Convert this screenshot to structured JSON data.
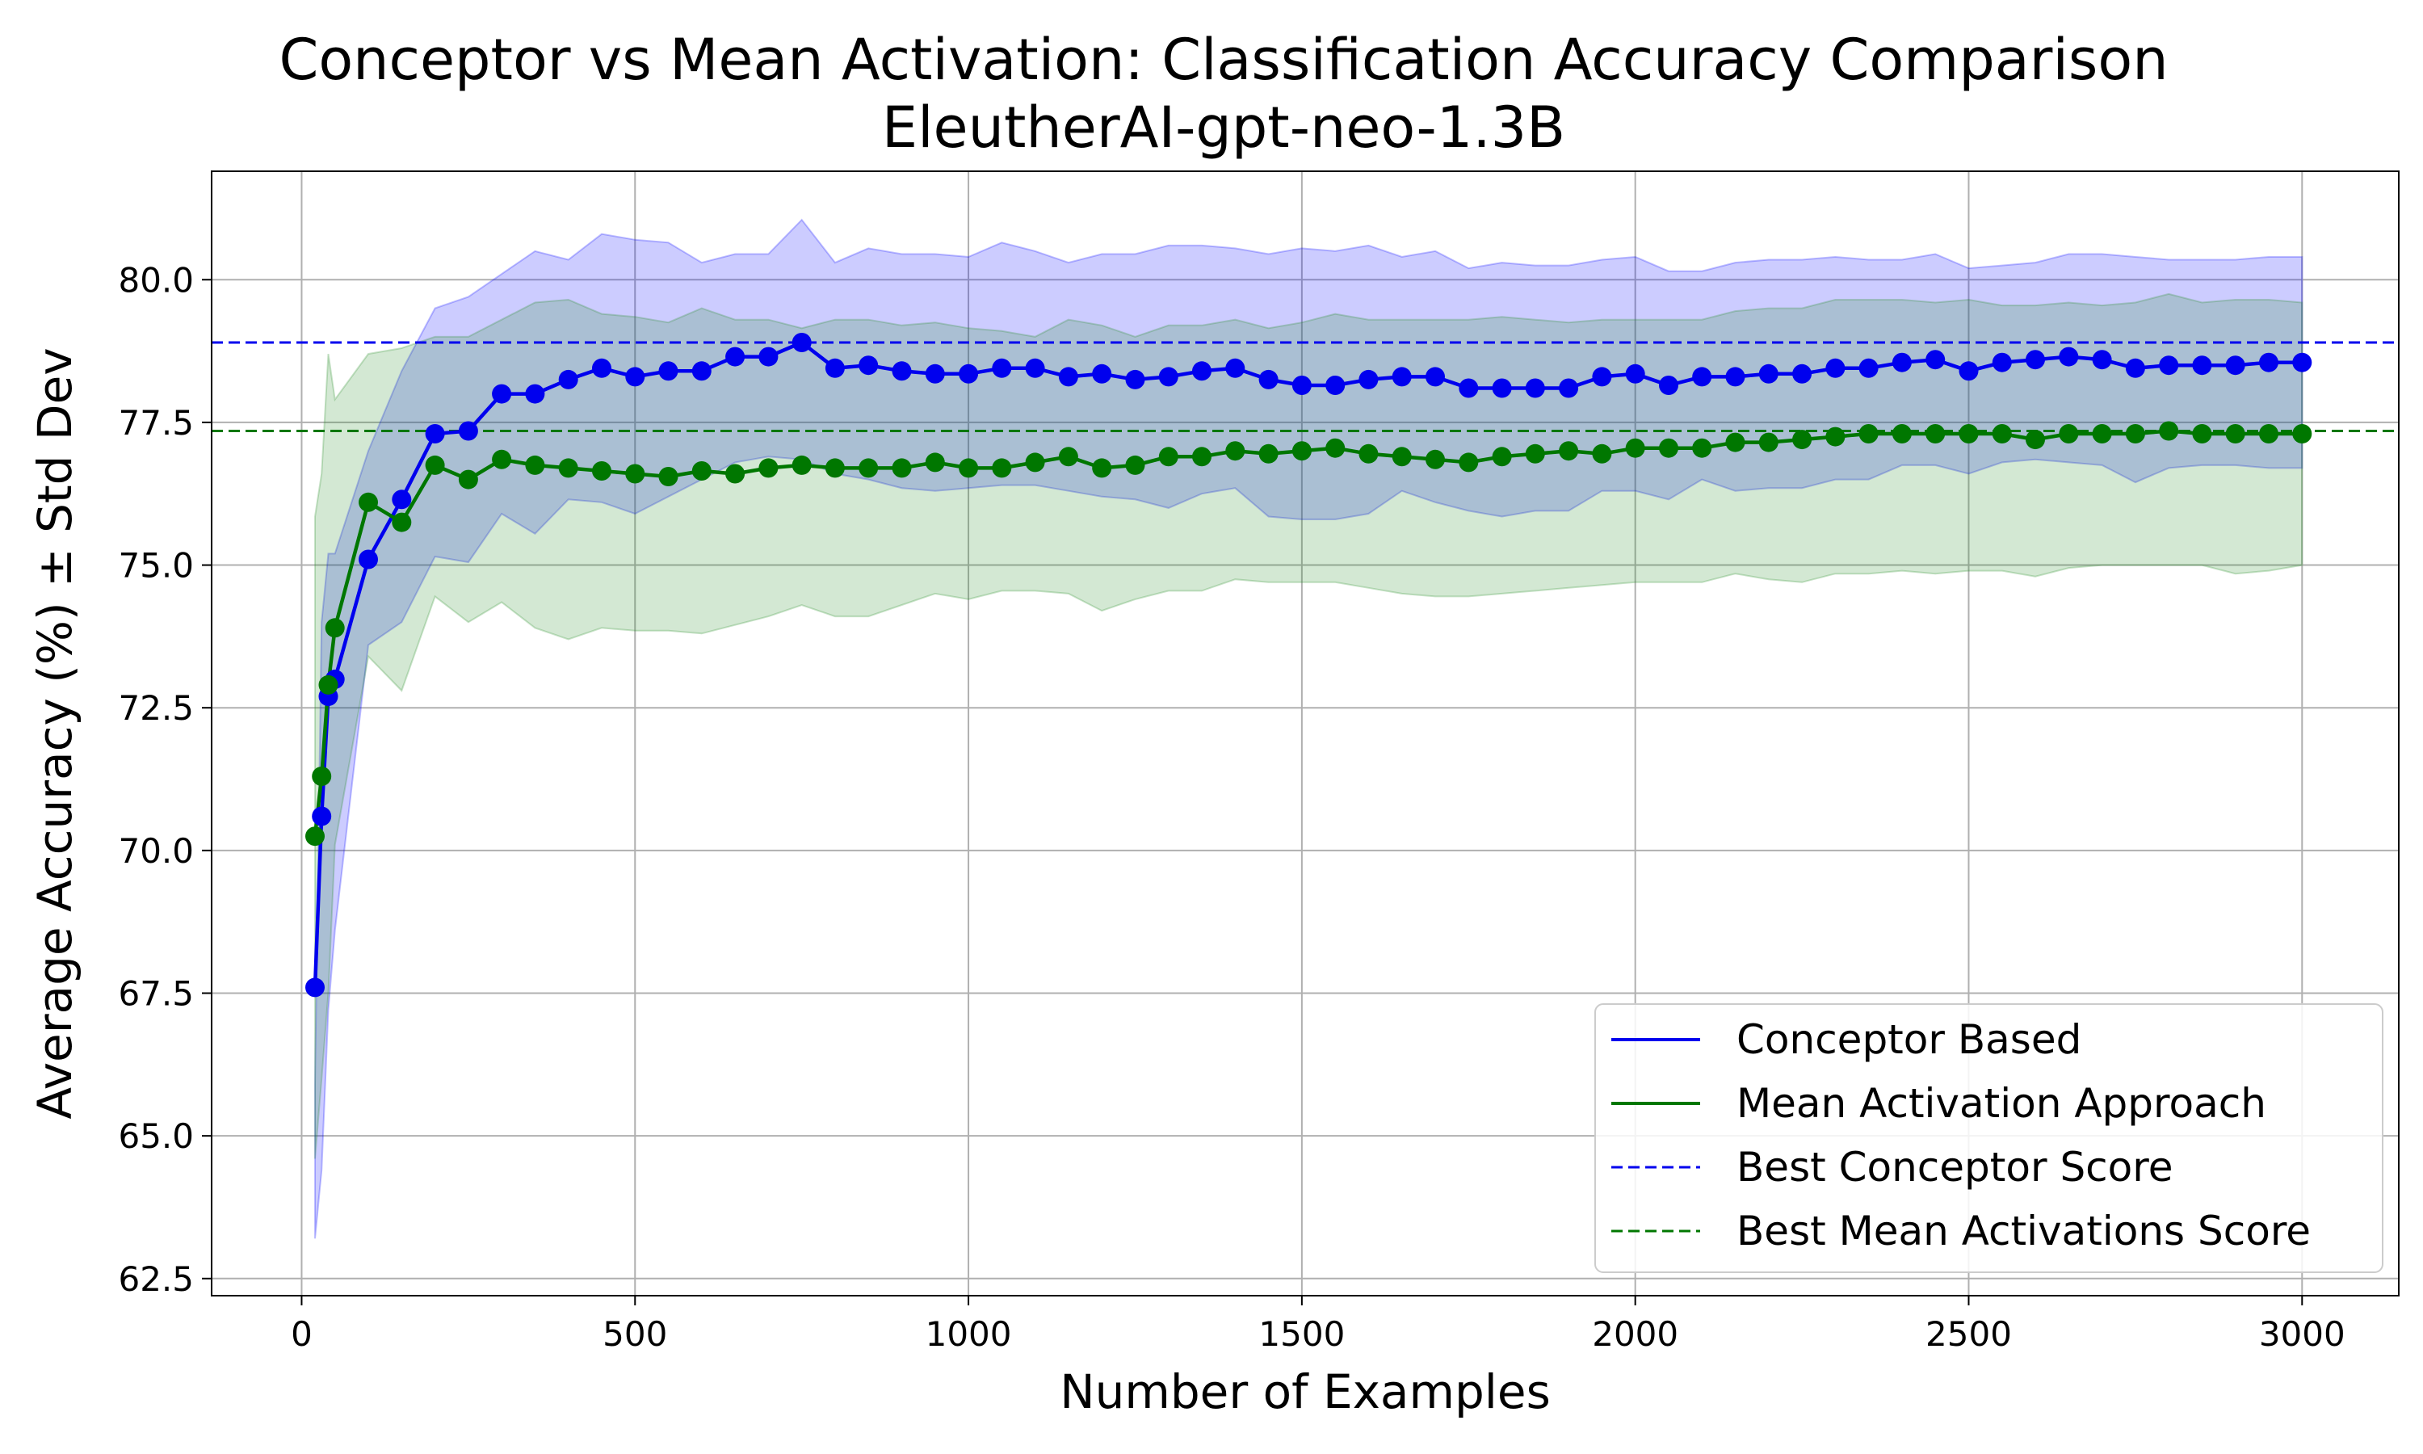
{
  "chart_data": {
    "type": "line",
    "title": "Conceptor vs Mean Activation: Classification Accuracy Comparison",
    "subtitle": "EleutherAI-gpt-neo-1.3B",
    "xlabel": "Number of Examples",
    "ylabel": "Average Accuracy (%) ± Std Dev",
    "xlim": [
      -135,
      3145
    ],
    "ylim": [
      62.2,
      81.9
    ],
    "xticks": [
      0,
      500,
      1000,
      1500,
      2000,
      2500,
      3000
    ],
    "xtick_labels": [
      "0",
      "500",
      "1000",
      "1500",
      "2000",
      "2500",
      "3000"
    ],
    "yticks": [
      62.5,
      65.0,
      67.5,
      70.0,
      72.5,
      75.0,
      77.5,
      80.0
    ],
    "ytick_labels": [
      "62.5",
      "65.0",
      "67.5",
      "70.0",
      "72.5",
      "75.0",
      "77.5",
      "80.0"
    ],
    "grid": true,
    "legend_position": "lower-right",
    "x": [
      20,
      30,
      40,
      50,
      100,
      150,
      200,
      250,
      300,
      350,
      400,
      450,
      500,
      550,
      600,
      650,
      700,
      750,
      800,
      850,
      900,
      950,
      1000,
      1050,
      1100,
      1150,
      1200,
      1250,
      1300,
      1350,
      1400,
      1450,
      1500,
      1550,
      1600,
      1650,
      1700,
      1750,
      1800,
      1850,
      1900,
      1950,
      2000,
      2050,
      2100,
      2150,
      2200,
      2250,
      2300,
      2350,
      2400,
      2450,
      2500,
      2550,
      2600,
      2650,
      2700,
      2750,
      2800,
      2850,
      2900,
      2950,
      3000
    ],
    "series": [
      {
        "name": "Conceptor Based",
        "color": "#0000ee",
        "band_color": "#0000ff",
        "values": [
          67.6,
          70.6,
          72.7,
          73.0,
          75.1,
          76.15,
          77.3,
          77.35,
          78.0,
          78.0,
          78.25,
          78.45,
          78.3,
          78.4,
          78.4,
          78.65,
          78.65,
          78.9,
          78.45,
          78.5,
          78.4,
          78.35,
          78.35,
          78.45,
          78.45,
          78.3,
          78.35,
          78.25,
          78.3,
          78.4,
          78.45,
          78.25,
          78.15,
          78.15,
          78.25,
          78.3,
          78.3,
          78.1,
          78.1,
          78.1,
          78.1,
          78.3,
          78.35,
          78.15,
          78.3,
          78.3,
          78.35,
          78.35,
          78.45,
          78.45,
          78.55,
          78.6,
          78.4,
          78.55,
          78.6,
          78.65,
          78.6,
          78.45,
          78.5,
          78.5,
          78.5,
          78.55,
          78.55
        ],
        "upper": [
          65.9,
          74.0,
          75.2,
          75.2,
          77.0,
          78.4,
          79.5,
          79.7,
          80.1,
          80.5,
          80.35,
          80.8,
          80.7,
          80.65,
          80.3,
          80.45,
          80.45,
          81.05,
          80.3,
          80.55,
          80.45,
          80.45,
          80.4,
          80.65,
          80.5,
          80.3,
          80.45,
          80.45,
          80.6,
          80.6,
          80.55,
          80.45,
          80.55,
          80.5,
          80.6,
          80.4,
          80.5,
          80.2,
          80.3,
          80.25,
          80.25,
          80.35,
          80.4,
          80.15,
          80.15,
          80.3,
          80.35,
          80.35,
          80.4,
          80.35,
          80.35,
          80.45,
          80.2,
          80.25,
          80.3,
          80.45,
          80.45,
          80.4,
          80.35,
          80.35,
          80.35,
          80.4,
          80.4
        ],
        "lower": [
          63.2,
          64.4,
          67.2,
          68.6,
          73.6,
          74.0,
          75.15,
          75.05,
          75.9,
          75.55,
          76.15,
          76.1,
          75.9,
          76.2,
          76.5,
          76.8,
          76.9,
          76.85,
          76.6,
          76.5,
          76.35,
          76.3,
          76.35,
          76.4,
          76.4,
          76.3,
          76.2,
          76.15,
          76.0,
          76.25,
          76.35,
          75.85,
          75.8,
          75.8,
          75.9,
          76.3,
          76.1,
          75.95,
          75.85,
          75.95,
          75.95,
          76.3,
          76.3,
          76.15,
          76.5,
          76.3,
          76.35,
          76.35,
          76.5,
          76.5,
          76.75,
          76.75,
          76.6,
          76.8,
          76.85,
          76.8,
          76.75,
          76.45,
          76.7,
          76.75,
          76.75,
          76.7,
          76.7
        ]
      },
      {
        "name": "Mean Activation Approach",
        "color": "#007700",
        "band_color": "#228b22",
        "values": [
          70.25,
          71.3,
          72.9,
          73.9,
          76.1,
          75.75,
          76.75,
          76.5,
          76.85,
          76.75,
          76.7,
          76.65,
          76.6,
          76.55,
          76.65,
          76.6,
          76.7,
          76.75,
          76.7,
          76.7,
          76.7,
          76.8,
          76.7,
          76.7,
          76.8,
          76.9,
          76.7,
          76.75,
          76.9,
          76.9,
          77.0,
          76.95,
          77.0,
          77.05,
          76.95,
          76.9,
          76.85,
          76.8,
          76.9,
          76.95,
          77.0,
          76.95,
          77.05,
          77.05,
          77.05,
          77.15,
          77.15,
          77.2,
          77.25,
          77.3,
          77.3,
          77.3,
          77.3,
          77.3,
          77.2,
          77.3,
          77.3,
          77.3,
          77.35,
          77.3,
          77.3,
          77.3,
          77.3
        ],
        "upper": [
          75.85,
          76.6,
          78.7,
          77.9,
          78.7,
          78.8,
          79.0,
          79.0,
          79.3,
          79.6,
          79.65,
          79.4,
          79.35,
          79.25,
          79.5,
          79.3,
          79.3,
          79.15,
          79.3,
          79.3,
          79.2,
          79.25,
          79.15,
          79.1,
          79.0,
          79.3,
          79.2,
          79.0,
          79.2,
          79.2,
          79.3,
          79.15,
          79.25,
          79.4,
          79.3,
          79.3,
          79.3,
          79.3,
          79.35,
          79.3,
          79.25,
          79.3,
          79.3,
          79.3,
          79.3,
          79.45,
          79.5,
          79.5,
          79.65,
          79.65,
          79.65,
          79.6,
          79.65,
          79.55,
          79.55,
          79.6,
          79.55,
          79.6,
          79.75,
          79.6,
          79.65,
          79.65,
          79.6
        ],
        "lower": [
          64.6,
          66.0,
          67.5,
          70.1,
          73.4,
          72.8,
          74.45,
          74.0,
          74.35,
          73.9,
          73.7,
          73.9,
          73.85,
          73.85,
          73.8,
          73.95,
          74.1,
          74.3,
          74.1,
          74.1,
          74.3,
          74.5,
          74.4,
          74.55,
          74.55,
          74.5,
          74.2,
          74.4,
          74.55,
          74.55,
          74.75,
          74.7,
          74.7,
          74.7,
          74.6,
          74.5,
          74.45,
          74.45,
          74.5,
          74.55,
          74.6,
          74.65,
          74.7,
          74.7,
          74.7,
          74.85,
          74.75,
          74.7,
          74.85,
          74.85,
          74.9,
          74.85,
          74.9,
          74.9,
          74.8,
          74.95,
          75.0,
          75.0,
          75.0,
          75.0,
          74.85,
          74.9,
          75.0
        ]
      }
    ],
    "reference_lines": [
      {
        "name": "Best Conceptor Score",
        "value": 78.9,
        "color": "#0000ee",
        "style": "dashed"
      },
      {
        "name": "Best Mean Activations Score",
        "value": 77.35,
        "color": "#007700",
        "style": "dashed"
      }
    ]
  }
}
